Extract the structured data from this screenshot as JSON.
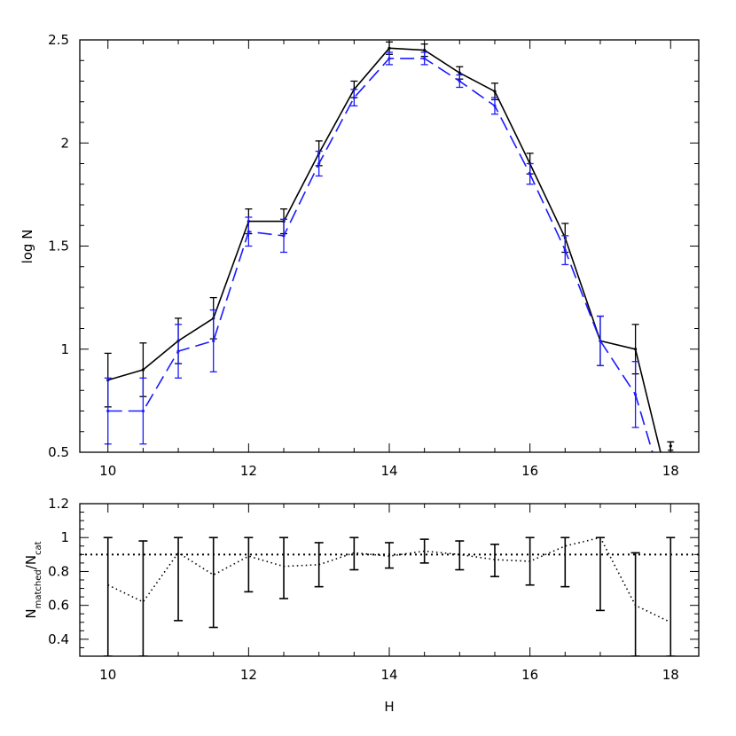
{
  "chart_data": [
    {
      "type": "line",
      "xlim": [
        9.6,
        18.4
      ],
      "ylim": [
        0.5,
        2.5
      ],
      "xlabel": "",
      "ylabel": "log N",
      "xticks": [
        10,
        12,
        14,
        16,
        18
      ],
      "yticks": [
        0.5,
        1,
        1.5,
        2,
        2.5
      ],
      "x_minor_step": 0.5,
      "y_minor_step": 0.1,
      "series": [
        {
          "color": "#000000",
          "dash": "solid",
          "x": [
            10,
            10.5,
            11,
            11.5,
            12,
            12.5,
            13,
            13.5,
            14,
            14.5,
            15,
            15.5,
            16,
            16.5,
            17,
            17.5,
            18
          ],
          "y": [
            0.85,
            0.9,
            1.04,
            1.15,
            1.62,
            1.62,
            1.95,
            2.26,
            2.46,
            2.45,
            2.34,
            2.25,
            1.9,
            1.54,
            1.04,
            1.0,
            0.3
          ],
          "err": [
            0.13,
            0.13,
            0.11,
            0.1,
            0.06,
            0.06,
            0.06,
            0.04,
            0.03,
            0.03,
            0.03,
            0.04,
            0.05,
            0.07,
            0.12,
            0.12,
            0.25
          ]
        },
        {
          "color": "#1a1aff",
          "dash": "long-dash",
          "x": [
            10,
            10.5,
            11,
            11.5,
            12,
            12.5,
            13,
            13.5,
            14,
            14.5,
            15,
            15.5,
            16,
            16.5,
            17,
            17.5,
            18
          ],
          "y": [
            0.7,
            0.7,
            0.99,
            1.04,
            1.57,
            1.55,
            1.9,
            2.22,
            2.41,
            2.41,
            2.3,
            2.18,
            1.85,
            1.48,
            1.04,
            0.78,
            0.2
          ],
          "err": [
            0.16,
            0.16,
            0.13,
            0.15,
            0.07,
            0.08,
            0.06,
            0.04,
            0.03,
            0.03,
            0.03,
            0.04,
            0.05,
            0.07,
            0.12,
            0.16,
            0.3
          ]
        }
      ],
      "extra_points": [
        {
          "x": 18,
          "y": 0.53,
          "err": 0.02,
          "color": "#000000"
        }
      ]
    },
    {
      "type": "line",
      "xlim": [
        9.6,
        18.4
      ],
      "ylim": [
        0.3,
        1.2
      ],
      "xlabel": "H",
      "ylabel_main": "N",
      "ylabel_sub1": "matched",
      "ylabel_mid": "/N",
      "ylabel_sub2": "cat",
      "xticks": [
        10,
        12,
        14,
        16,
        18
      ],
      "yticks": [
        0.4,
        0.6,
        0.8,
        1,
        1.2
      ],
      "x_minor_step": 0.5,
      "y_minor_step": 0.05,
      "reference_line": 0.9,
      "series": [
        {
          "color": "#000000",
          "dash": "dotted",
          "x": [
            10,
            10.5,
            11,
            11.5,
            12,
            12.5,
            13,
            13.5,
            14,
            14.5,
            15,
            15.5,
            16,
            16.5,
            17,
            17.5,
            18
          ],
          "y": [
            0.72,
            0.62,
            0.91,
            0.78,
            0.89,
            0.83,
            0.84,
            0.91,
            0.89,
            0.92,
            0.9,
            0.87,
            0.86,
            0.95,
            1.0,
            0.6,
            0.5
          ]
        }
      ],
      "error_bars": [
        {
          "x": 10,
          "low": 0.3,
          "high": 1.0
        },
        {
          "x": 10.5,
          "low": 0.3,
          "high": 0.98
        },
        {
          "x": 11,
          "low": 0.51,
          "high": 1.0
        },
        {
          "x": 11.5,
          "low": 0.47,
          "high": 1.0
        },
        {
          "x": 12,
          "low": 0.68,
          "high": 1.0
        },
        {
          "x": 12.5,
          "low": 0.64,
          "high": 1.0
        },
        {
          "x": 13,
          "low": 0.71,
          "high": 0.97
        },
        {
          "x": 13.5,
          "low": 0.81,
          "high": 1.0
        },
        {
          "x": 14,
          "low": 0.82,
          "high": 0.97
        },
        {
          "x": 14.5,
          "low": 0.85,
          "high": 0.99
        },
        {
          "x": 15,
          "low": 0.81,
          "high": 0.98
        },
        {
          "x": 15.5,
          "low": 0.77,
          "high": 0.96
        },
        {
          "x": 16,
          "low": 0.72,
          "high": 1.0
        },
        {
          "x": 16.5,
          "low": 0.71,
          "high": 1.0
        },
        {
          "x": 17,
          "low": 0.57,
          "high": 1.0
        },
        {
          "x": 17.5,
          "low": 0.3,
          "high": 0.91
        },
        {
          "x": 18,
          "low": 0.3,
          "high": 1.0
        }
      ]
    }
  ]
}
